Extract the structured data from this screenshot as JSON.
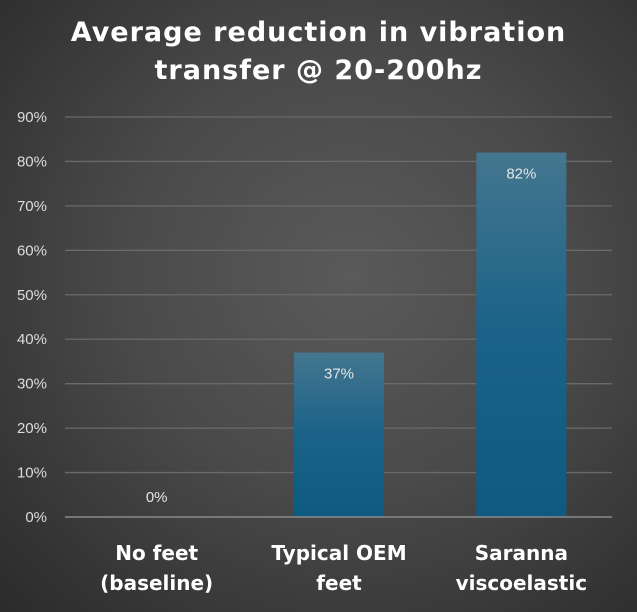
{
  "chart_data": {
    "type": "bar",
    "title_lines": [
      "Average reduction in vibration",
      "transfer @ 20-200hz"
    ],
    "categories": [
      [
        "No feet",
        "(baseline)"
      ],
      [
        "Typical OEM",
        "feet"
      ],
      [
        "Saranna",
        "viscoelastic"
      ]
    ],
    "values": [
      0,
      37,
      82
    ],
    "data_labels": [
      "0%",
      "37%",
      "82%"
    ],
    "yticks": [
      "0%",
      "10%",
      "20%",
      "30%",
      "40%",
      "50%",
      "60%",
      "70%",
      "80%",
      "90%"
    ],
    "ylim": [
      0,
      90
    ],
    "grid": true,
    "xlabel": "",
    "ylabel": "",
    "colors": {
      "bar_top": "#44768f",
      "bar_bottom": "#0e5a80",
      "grid": "#6a6a6a",
      "text": "#ffffff",
      "tick": "#dddddd"
    }
  }
}
